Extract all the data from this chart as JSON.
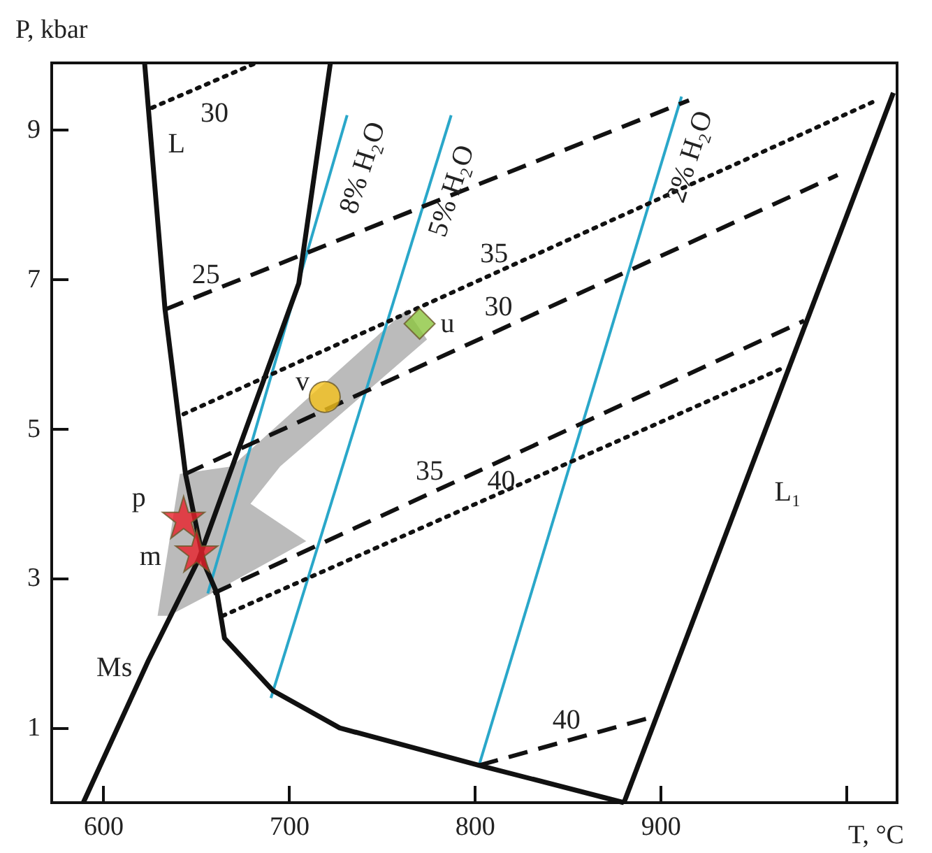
{
  "chart_data": {
    "type": "line",
    "xlabel": "T, °C",
    "ylabel": "P, kbar",
    "xlim": [
      572,
      1027
    ],
    "ylim": [
      0,
      9.9
    ],
    "xticks": [
      600,
      700,
      800,
      900,
      {
        "value": 1000,
        "label": null
      }
    ],
    "yticks": [
      1,
      3,
      5,
      7,
      9
    ],
    "grid": false,
    "legend": false,
    "series": [
      {
        "type": "area",
        "color": "#b4b4b4",
        "x": [
          629,
          641,
          669,
          763,
          774,
          695,
          679,
          709,
          658,
          635
        ],
        "values": [
          2.5,
          4.4,
          4.5,
          6.6,
          6.2,
          4.5,
          4.0,
          3.5,
          2.8,
          2.5
        ]
      },
      {
        "name": "8% H₂O",
        "color": "#2aa7c9",
        "line_style": "solid",
        "marker": "none",
        "x": [
          656,
          731
        ],
        "values": [
          2.8,
          9.2
        ]
      },
      {
        "name": "5% H₂O",
        "color": "#2aa7c9",
        "line_style": "solid",
        "marker": "none",
        "x": [
          690,
          787
        ],
        "values": [
          1.4,
          9.2
        ]
      },
      {
        "name": "2% H₂O",
        "color": "#2aa7c9",
        "line_style": "solid",
        "marker": "none",
        "x": [
          802,
          911
        ],
        "values": [
          0.5,
          9.45
        ]
      },
      {
        "name": "L",
        "color": "#111111",
        "line_style": "solid",
        "marker": "none",
        "x": [
          622,
          633,
          644,
          654,
          661,
          665,
          691,
          727,
          802,
          880
        ],
        "values": [
          9.9,
          6.6,
          4.4,
          3.2,
          2.8,
          2.2,
          1.5,
          1.0,
          0.5,
          0
        ]
      },
      {
        "name": "Ms",
        "color": "#111111",
        "line_style": "solid",
        "marker": "none",
        "x": [
          589,
          624,
          651,
          705,
          722
        ],
        "values": [
          0,
          1.9,
          3.25,
          6.95,
          9.9
        ]
      },
      {
        "name": "L₁",
        "color": "#111111",
        "line_style": "solid",
        "marker": "none",
        "x": [
          880,
          1025
        ],
        "values": [
          0,
          9.5
        ]
      },
      {
        "name": "30",
        "color": "#111111",
        "line_style": "dotted",
        "marker": "none",
        "x": [
          626,
          682
        ],
        "values": [
          9.3,
          9.9
        ]
      },
      {
        "name": "25",
        "color": "#111111",
        "line_style": "dashed",
        "marker": "none",
        "x": [
          633,
          915
        ],
        "values": [
          6.6,
          9.4
        ]
      },
      {
        "name": "35",
        "color": "#111111",
        "line_style": "dotted",
        "marker": "none",
        "x": [
          643,
          1016
        ],
        "values": [
          5.2,
          9.4
        ]
      },
      {
        "name": "30",
        "color": "#111111",
        "line_style": "dashed",
        "marker": "none",
        "x": [
          644,
          995
        ],
        "values": [
          4.4,
          8.4
        ]
      },
      {
        "name": "35",
        "color": "#111111",
        "line_style": "dashed",
        "marker": "none",
        "x": [
          659,
          977
        ],
        "values": [
          2.8,
          6.45
        ]
      },
      {
        "name": "40",
        "color": "#111111",
        "line_style": "dotted",
        "marker": "none",
        "x": [
          664,
          964
        ],
        "values": [
          2.5,
          5.8
        ]
      },
      {
        "name": "40",
        "color": "#111111",
        "line_style": "dashed",
        "marker": "none",
        "x": [
          802,
          896
        ],
        "values": [
          0.5,
          1.15
        ]
      },
      {
        "name": "p",
        "type": "scatter",
        "color": "#e8202a",
        "marker": "star",
        "x": [
          643
        ],
        "values": [
          3.82
        ]
      },
      {
        "name": "m",
        "type": "scatter",
        "color": "#e8202a",
        "marker": "star",
        "x": [
          650
        ],
        "values": [
          3.37
        ]
      },
      {
        "name": "v",
        "type": "scatter",
        "color": "#f5c21b",
        "marker": "circle",
        "x": [
          719
        ],
        "values": [
          5.43
        ]
      },
      {
        "name": "u",
        "type": "scatter",
        "color": "#8cc63f",
        "marker": "diamond",
        "x": [
          770
        ],
        "values": [
          6.41
        ]
      }
    ]
  }
}
